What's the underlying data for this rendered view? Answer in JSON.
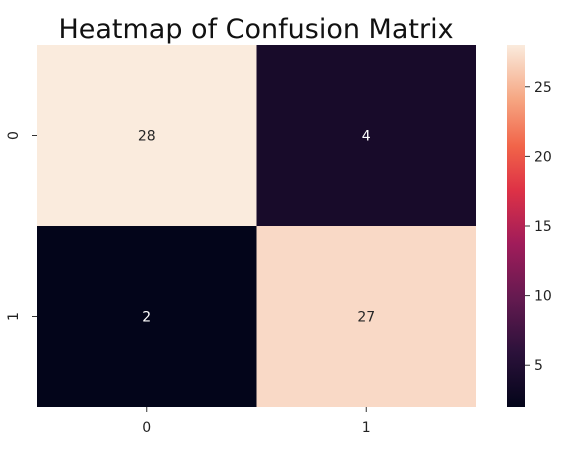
{
  "chart_data": {
    "type": "heatmap",
    "title": "Heatmap of Confusion Matrix",
    "xlabel": "",
    "ylabel": "",
    "x_categories": [
      "0",
      "1"
    ],
    "y_categories": [
      "0",
      "1"
    ],
    "matrix": [
      [
        28,
        4
      ],
      [
        2,
        27
      ]
    ],
    "colormap": "rocket",
    "colorbar": {
      "min": 2,
      "max": 28,
      "ticks": [
        5,
        10,
        15,
        20,
        25
      ],
      "tick_labels": [
        "5",
        "10",
        "15",
        "20",
        "25"
      ]
    }
  }
}
